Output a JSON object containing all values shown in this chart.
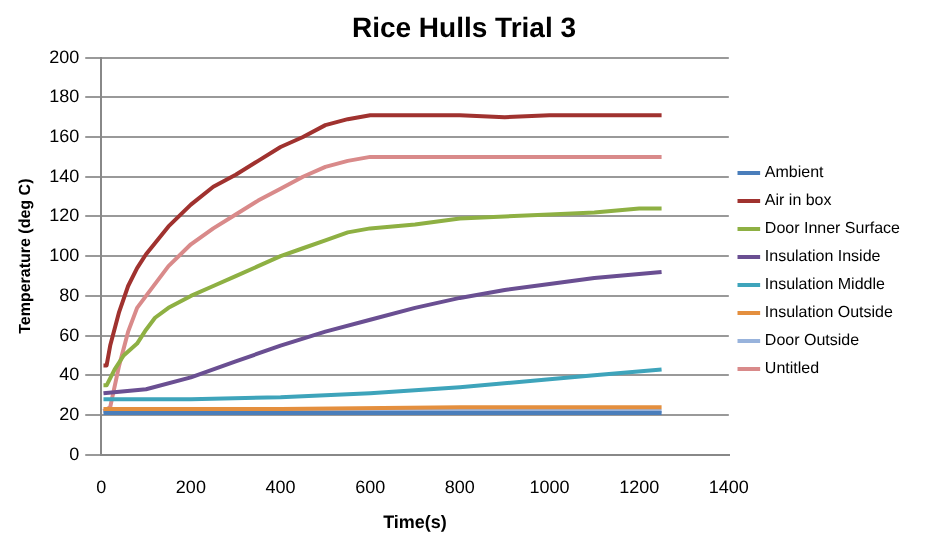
{
  "chart_data": {
    "type": "line",
    "title": "Rice Hulls Trial 3",
    "xlabel": "Time(s)",
    "ylabel": "Temperature (deg C)",
    "xlim": [
      0,
      1400
    ],
    "xticks": [
      0,
      200,
      400,
      600,
      800,
      1000,
      1200,
      1400
    ],
    "ylim": [
      0,
      200
    ],
    "yticks": [
      0,
      20,
      40,
      60,
      80,
      100,
      120,
      140,
      160,
      180,
      200
    ],
    "grid": "y",
    "legend": "right",
    "marker": "none",
    "line_style": "solid",
    "series": [
      {
        "name": "Ambient",
        "color": "#4a7ebb",
        "x": [
          5,
          400,
          800,
          1250
        ],
        "values": [
          21,
          21,
          21,
          21
        ]
      },
      {
        "name": "Air in box",
        "color": "#a0322f",
        "x": [
          5,
          12,
          20,
          40,
          60,
          80,
          100,
          150,
          200,
          250,
          300,
          350,
          400,
          450,
          500,
          550,
          600,
          700,
          800,
          900,
          1000,
          1100,
          1200,
          1250
        ],
        "values": [
          45,
          45,
          55,
          72,
          85,
          94,
          101,
          115,
          126,
          135,
          141,
          148,
          155,
          160,
          166,
          169,
          171,
          171,
          171,
          170,
          171,
          171,
          171,
          171
        ]
      },
      {
        "name": "Door Inner Surface",
        "color": "#8eb043",
        "x": [
          5,
          12,
          30,
          50,
          80,
          100,
          120,
          150,
          200,
          250,
          300,
          350,
          400,
          450,
          500,
          550,
          600,
          700,
          800,
          900,
          1000,
          1100,
          1200,
          1250
        ],
        "values": [
          35,
          35,
          43,
          50,
          56,
          63,
          69,
          74,
          80,
          85,
          90,
          95,
          100,
          104,
          108,
          112,
          114,
          116,
          119,
          120,
          121,
          122,
          124,
          124
        ]
      },
      {
        "name": "Insulation Inside",
        "color": "#6a4f92",
        "x": [
          5,
          100,
          200,
          300,
          400,
          500,
          600,
          700,
          800,
          900,
          1000,
          1100,
          1200,
          1250
        ],
        "values": [
          31,
          33,
          39,
          47,
          55,
          62,
          68,
          74,
          79,
          83,
          86,
          89,
          91,
          92
        ]
      },
      {
        "name": "Insulation Middle",
        "color": "#3ea4bb",
        "x": [
          5,
          200,
          400,
          600,
          800,
          1000,
          1100,
          1250
        ],
        "values": [
          28,
          28,
          29,
          31,
          34,
          38,
          40,
          43
        ]
      },
      {
        "name": "Insulation Outside",
        "color": "#e48f3e",
        "x": [
          5,
          400,
          800,
          1250
        ],
        "values": [
          23,
          23,
          24,
          24
        ]
      },
      {
        "name": "Door Outside",
        "color": "#98b3dc",
        "x": [
          5,
          400,
          800,
          1250
        ],
        "values": [
          22,
          22,
          22,
          22
        ]
      },
      {
        "name": "Untitled",
        "color": "#d98a8a",
        "x": [
          5,
          20,
          40,
          60,
          80,
          100,
          150,
          200,
          250,
          300,
          350,
          400,
          450,
          500,
          550,
          600,
          700,
          800,
          900,
          1000,
          1100,
          1200,
          1250
        ],
        "values": [
          22,
          24,
          45,
          62,
          74,
          80,
          95,
          106,
          114,
          121,
          128,
          134,
          140,
          145,
          148,
          150,
          150,
          150,
          150,
          150,
          150,
          150,
          150
        ]
      }
    ]
  }
}
